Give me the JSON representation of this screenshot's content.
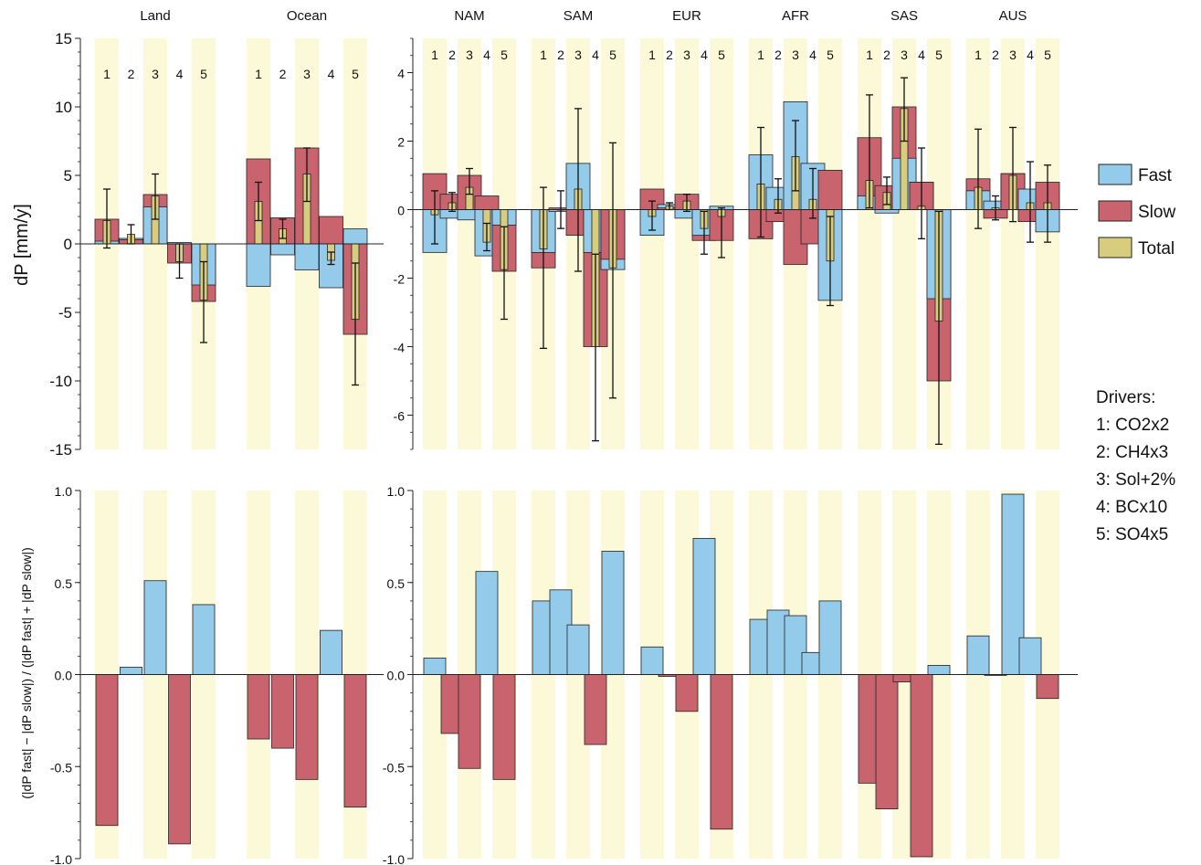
{
  "colors": {
    "fast": "#94cbea",
    "slow": "#c9646f",
    "total": "#d8cc7f",
    "band": "#fbf9d8"
  },
  "legend": {
    "entries": [
      {
        "key": "fast",
        "label": "Fast"
      },
      {
        "key": "slow",
        "label": "Slow"
      },
      {
        "key": "total",
        "label": "Total"
      }
    ]
  },
  "drivers": {
    "title": "Drivers:",
    "items": [
      "1: CO2x2",
      "2: CH4x3",
      "3: Sol+2%",
      "4: BCx10",
      "5: SO4x5"
    ]
  },
  "chart_data": [
    {
      "type": "bar",
      "panel": "top-left",
      "ylabel": "dP [mm/y]",
      "ylim": [
        -15,
        15
      ],
      "yticks": [
        "15",
        "10",
        "5",
        "0",
        "-5",
        "-10",
        "-15"
      ],
      "driver_labels": [
        "1",
        "2",
        "3",
        "4",
        "5"
      ],
      "groups": [
        {
          "region": "Land",
          "fast": [
            0.2,
            0.4,
            2.7,
            0.1,
            -3.0
          ],
          "slow": [
            1.8,
            0.3,
            3.6,
            -1.4,
            -4.2
          ],
          "total": [
            1.7,
            0.7,
            3.5,
            -1.3,
            -4.1
          ],
          "err_low": [
            -0.3,
            0.0,
            1.8,
            -2.5,
            -7.2
          ],
          "err_high": [
            4.0,
            1.4,
            5.1,
            0.0,
            -1.3
          ]
        },
        {
          "region": "Ocean",
          "fast": [
            -3.1,
            -0.8,
            -1.9,
            -3.2,
            1.1
          ],
          "slow": [
            6.2,
            1.9,
            7.0,
            2.0,
            -6.6
          ],
          "total": [
            3.1,
            1.1,
            5.1,
            -1.2,
            -5.5
          ],
          "err_low": [
            1.7,
            0.4,
            3.1,
            -1.5,
            -10.3
          ],
          "err_high": [
            4.5,
            1.8,
            7.0,
            -0.6,
            -1.4
          ]
        }
      ]
    },
    {
      "type": "bar",
      "panel": "top-right",
      "ylim": [
        -7,
        5
      ],
      "yticks": [
        "4",
        "2",
        "0",
        "-2",
        "-4",
        "-6"
      ],
      "driver_labels": [
        "1",
        "2",
        "3",
        "4",
        "5"
      ],
      "groups": [
        {
          "region": "NAM",
          "fast": [
            -1.25,
            -0.25,
            -0.3,
            -1.35,
            -0.45
          ],
          "slow": [
            1.05,
            0.45,
            1.0,
            0.4,
            -1.8
          ],
          "total": [
            -0.15,
            0.2,
            0.65,
            -0.95,
            -1.75
          ],
          "err_low": [
            -1.0,
            -0.05,
            0.45,
            -1.2,
            -3.2
          ],
          "err_high": [
            0.55,
            0.5,
            1.2,
            -0.4,
            -0.5
          ]
        },
        {
          "region": "SAM",
          "fast": [
            -1.25,
            -0.05,
            1.35,
            -1.25,
            -1.75
          ],
          "slow": [
            -1.7,
            0.05,
            -0.75,
            -4.0,
            -1.45
          ],
          "total": [
            -1.15,
            0.0,
            0.6,
            -4.0,
            -1.7
          ],
          "err_low": [
            -4.05,
            -0.55,
            -1.8,
            -6.75,
            -5.5
          ],
          "err_high": [
            0.65,
            0.55,
            2.95,
            -1.3,
            1.95
          ]
        },
        {
          "region": "EUR",
          "fast": [
            -0.75,
            0.15,
            -0.25,
            -0.75,
            0.1
          ],
          "slow": [
            0.6,
            0.05,
            0.45,
            -0.9,
            -0.9
          ],
          "total": [
            -0.2,
            0.1,
            0.25,
            -0.55,
            -0.2
          ],
          "err_low": [
            -0.6,
            0.0,
            -0.05,
            -1.3,
            -1.4
          ],
          "err_high": [
            0.25,
            0.2,
            0.45,
            -0.05,
            0.05
          ]
        },
        {
          "region": "AFR",
          "fast": [
            1.6,
            0.65,
            3.15,
            1.35,
            -2.65
          ],
          "slow": [
            -0.85,
            -0.35,
            -1.6,
            -1.0,
            1.15
          ],
          "total": [
            0.75,
            0.3,
            1.55,
            0.3,
            -1.5
          ],
          "err_low": [
            -0.8,
            -0.1,
            0.55,
            -0.25,
            -2.8
          ],
          "err_high": [
            2.4,
            0.9,
            2.6,
            1.2,
            -0.2
          ]
        },
        {
          "region": "SAS",
          "fast": [
            0.4,
            -0.1,
            1.5,
            0.8,
            -2.6
          ],
          "slow": [
            2.1,
            0.7,
            3.0,
            0.8,
            -5.0
          ],
          "total": [
            0.85,
            0.5,
            2.95,
            0.1,
            -3.25
          ],
          "err_low": [
            0.05,
            0.15,
            2.0,
            -0.85,
            -6.85
          ],
          "err_high": [
            3.35,
            0.95,
            3.85,
            1.8,
            -0.05
          ]
        },
        {
          "region": "AUS",
          "fast": [
            0.55,
            0.25,
            1.05,
            0.6,
            -0.65
          ],
          "slow": [
            0.9,
            -0.25,
            1.05,
            -0.35,
            0.8
          ],
          "total": [
            0.65,
            0.05,
            1.0,
            0.2,
            0.2
          ],
          "err_low": [
            -0.55,
            -0.3,
            -0.35,
            -0.95,
            -0.95
          ],
          "err_high": [
            2.35,
            0.4,
            2.4,
            1.4,
            1.3
          ]
        }
      ]
    },
    {
      "type": "bar",
      "panel": "bottom-left",
      "ylabel": "(|dP fast| − |dP slow|) / (|dP fast| + |dP slow|)",
      "ylim": [
        -1,
        1
      ],
      "yticks": [
        "1.0",
        "0.5",
        "0.0",
        "-0.5",
        "-1.0"
      ],
      "groups": [
        {
          "region": "Land",
          "values": [
            -0.82,
            0.04,
            0.51,
            -0.92,
            0.38
          ]
        },
        {
          "region": "Ocean",
          "values": [
            -0.35,
            -0.4,
            -0.57,
            0.24,
            -0.72
          ]
        }
      ]
    },
    {
      "type": "bar",
      "panel": "bottom-right",
      "ylim": [
        -1,
        1
      ],
      "yticks": [
        "1.0",
        "0.5",
        "0.0",
        "-0.5",
        "-1.0"
      ],
      "groups": [
        {
          "region": "NAM",
          "values": [
            0.09,
            -0.32,
            -0.51,
            0.56,
            -0.57
          ]
        },
        {
          "region": "SAM",
          "values": [
            0.4,
            0.46,
            0.27,
            -0.38,
            0.67
          ]
        },
        {
          "region": "EUR",
          "values": [
            0.15,
            -0.01,
            -0.2,
            0.74,
            -0.84
          ]
        },
        {
          "region": "AFR",
          "values": [
            0.3,
            0.35,
            0.32,
            0.12,
            0.4
          ]
        },
        {
          "region": "SAS",
          "values": [
            -0.59,
            -0.73,
            -0.04,
            -0.99,
            0.05
          ]
        },
        {
          "region": "AUS",
          "values": [
            0.21,
            0.0,
            0.98,
            0.2,
            -0.13
          ]
        }
      ]
    }
  ]
}
